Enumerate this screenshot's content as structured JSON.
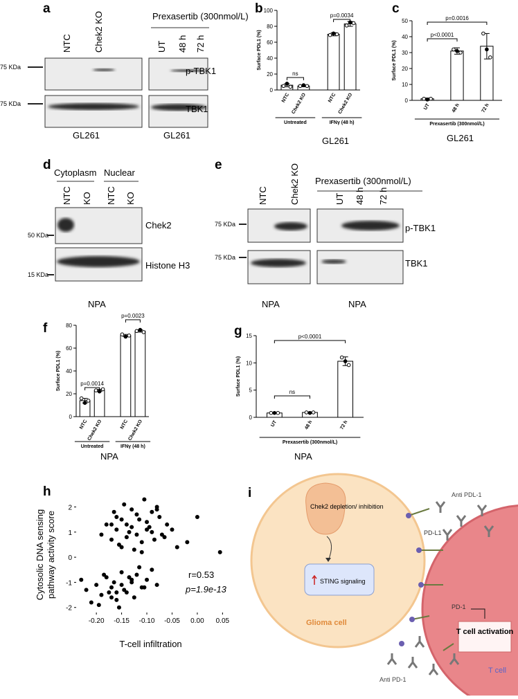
{
  "blots": {
    "a": {
      "label": "a",
      "treatment": "Prexasertib (300nmol/L)",
      "lanes": [
        "NTC",
        "Chek2 KO",
        "UT",
        "48 h",
        "72 h"
      ],
      "markers": [
        "75 KDa",
        "75 KDa"
      ],
      "proteins": [
        "p-TBK1",
        "TBK1"
      ],
      "cell_lines": [
        "GL261",
        "GL261"
      ]
    },
    "d": {
      "label": "d",
      "fractions": [
        "Cytoplasm",
        "Nuclear"
      ],
      "lanes": [
        "NTC",
        "KO",
        "NTC",
        "KO"
      ],
      "markers": [
        "50 KDa",
        "15 KDa"
      ],
      "proteins": [
        "Chek2",
        "Histone H3"
      ],
      "cell_line": "NPA"
    },
    "e": {
      "label": "e",
      "treatment": "Prexasertib (300nmol/L)",
      "lanes": [
        "NTC",
        "Chek2 KO",
        "UT",
        "48 h",
        "72 h"
      ],
      "markers": [
        "75 KDa",
        "75 KDa"
      ],
      "proteins": [
        "p-TBK1",
        "TBK1"
      ],
      "cell_lines": [
        "NPA",
        "NPA"
      ]
    }
  },
  "chart_data": [
    {
      "type": "bar",
      "panel": "b",
      "ylabel": "Surface PDL1 (%)",
      "categories": [
        "NTC",
        "Chek2 KO",
        "NTC",
        "Chek2 KO"
      ],
      "groups": [
        "Untreated",
        "IFNγ (48 h)"
      ],
      "values": [
        6,
        5,
        70,
        83
      ],
      "errors": [
        2,
        1,
        2,
        3
      ],
      "points": [
        [
          5,
          8,
          4
        ],
        [
          5,
          6,
          5
        ],
        [
          69,
          71,
          70
        ],
        [
          81,
          85,
          84
        ]
      ],
      "ylim": [
        0,
        100
      ],
      "yticks": [
        0,
        20,
        40,
        60,
        80,
        100
      ],
      "annotations": [
        "ns",
        "p=0.0034"
      ],
      "caption": "GL261"
    },
    {
      "type": "bar",
      "panel": "c",
      "ylabel": "Surface PDL1 (%)",
      "categories": [
        "UT",
        "48 h",
        "72 h"
      ],
      "groups": [
        "Prexasertib (300nmol/L)"
      ],
      "values": [
        1,
        31,
        34
      ],
      "errors": [
        0.5,
        2,
        8
      ],
      "points": [
        [
          1,
          0.5,
          1
        ],
        [
          32,
          31,
          30
        ],
        [
          42,
          32,
          27
        ]
      ],
      "ylim": [
        0,
        50
      ],
      "yticks": [
        0,
        10,
        20,
        30,
        40,
        50
      ],
      "annotations": [
        "p<0.0001",
        "p=0.0016"
      ],
      "caption": "GL261"
    },
    {
      "type": "bar",
      "panel": "f",
      "ylabel": "Surface PDL1 (%)",
      "categories": [
        "NTC",
        "Chek2 KO",
        "NTC",
        "Chek2 KO"
      ],
      "groups": [
        "Untreated",
        "IFNγ (48 h)"
      ],
      "values": [
        14,
        23,
        71,
        75
      ],
      "errors": [
        2,
        1,
        1,
        1
      ],
      "points": [
        [
          16,
          12,
          14
        ],
        [
          23,
          22,
          24
        ],
        [
          72,
          70,
          71
        ],
        [
          75,
          76,
          74
        ]
      ],
      "ylim": [
        0,
        80
      ],
      "yticks": [
        0,
        20,
        40,
        60,
        80
      ],
      "annotations": [
        "p=0.0014",
        "p=0.0023"
      ],
      "caption": "NPA"
    },
    {
      "type": "bar",
      "panel": "g",
      "ylabel": "Surface PDL1 (%)",
      "categories": [
        "UT",
        "48 h",
        "72 h"
      ],
      "groups": [
        "Prexasertib (300nmol/L)"
      ],
      "values": [
        0.8,
        0.9,
        10.3
      ],
      "errors": [
        0.1,
        0.1,
        0.8
      ],
      "points": [
        [
          0.8,
          0.8,
          0.8
        ],
        [
          0.9,
          0.8,
          0.9
        ],
        [
          11,
          10.3,
          9.6
        ]
      ],
      "ylim": [
        0,
        15
      ],
      "yticks": [
        0,
        5,
        10,
        15
      ],
      "annotations": [
        "ns",
        "p<0.0001"
      ],
      "caption": "NPA"
    },
    {
      "type": "scatter",
      "panel": "h",
      "xlabel": "T-cell infiltration",
      "ylabel": [
        "Cytosolic DNA sensing",
        "pathway activity score"
      ],
      "x": [
        -0.19,
        -0.18,
        -0.17,
        -0.16,
        -0.15,
        -0.14,
        -0.13,
        -0.12,
        -0.11,
        -0.1,
        -0.09,
        -0.08,
        -0.07,
        -0.06,
        -0.05,
        -0.04,
        -0.02,
        0.0,
        0.045,
        -0.165,
        -0.155,
        -0.145,
        -0.135,
        -0.125,
        -0.115,
        -0.105,
        -0.095,
        -0.085,
        -0.075,
        -0.065,
        -0.14,
        -0.12,
        -0.1,
        -0.13,
        -0.11,
        -0.15,
        -0.09,
        -0.16,
        -0.17,
        -0.08,
        -0.23,
        -0.22,
        -0.21,
        -0.2,
        -0.19,
        -0.18,
        -0.17,
        -0.16,
        -0.15,
        -0.14,
        -0.13,
        -0.12,
        -0.11,
        -0.1,
        -0.09,
        -0.08,
        -0.195,
        -0.185,
        -0.175,
        -0.165,
        -0.155,
        -0.145,
        -0.135,
        -0.125,
        -0.115,
        -0.105,
        -0.17,
        -0.15,
        -0.13,
        -0.16
      ],
      "y": [
        0.9,
        1.3,
        0.7,
        1.1,
        1.5,
        0.8,
        1.2,
        1.7,
        0.6,
        1.4,
        1.0,
        1.9,
        0.9,
        1.3,
        1.1,
        0.4,
        0.6,
        1.6,
        0.2,
        1.8,
        0.5,
        2.1,
        1.0,
        0.3,
        1.5,
        2.3,
        1.2,
        0.7,
        1.6,
        0.8,
        1.3,
        0.9,
        1.1,
        1.9,
        0.2,
        0.4,
        1.8,
        1.6,
        1.3,
        2.0,
        -0.9,
        -1.3,
        -1.8,
        -1.1,
        -1.5,
        -0.8,
        -1.2,
        -1.7,
        -0.6,
        -1.4,
        -1.0,
        -0.7,
        -1.2,
        -0.9,
        -0.5,
        -1.1,
        -1.9,
        -0.7,
        -1.4,
        -1.0,
        -2.0,
        -1.3,
        -0.8,
        -1.6,
        -0.4,
        -1.2,
        -1.6,
        -1.1,
        -0.9,
        -1.4
      ],
      "xlim": [
        -0.24,
        0.055
      ],
      "ylim": [
        -2.2,
        2.4
      ],
      "xticks": [
        {
          "value": -0.2,
          "label": "-0.20"
        },
        {
          "value": -0.15,
          "label": "-0.15"
        },
        {
          "value": -0.1,
          "label": "-0.10"
        },
        {
          "value": -0.05,
          "label": "-0.05"
        },
        {
          "value": 0,
          "label": "0.00"
        },
        0.05
      ],
      "yticks": [
        -2,
        -1,
        0,
        1,
        2
      ],
      "annotations": [
        "r=0.53",
        "p=1.9e-13"
      ]
    }
  ],
  "diagram": {
    "label": "i",
    "texts": [
      "Chek2 depletion/ inhibition",
      "STING signaling",
      "Glioma cell",
      "Anti PDL-1",
      "PD-L1",
      "PD-1",
      "T cell activation",
      "T cell",
      "Anti PD-1"
    ]
  }
}
